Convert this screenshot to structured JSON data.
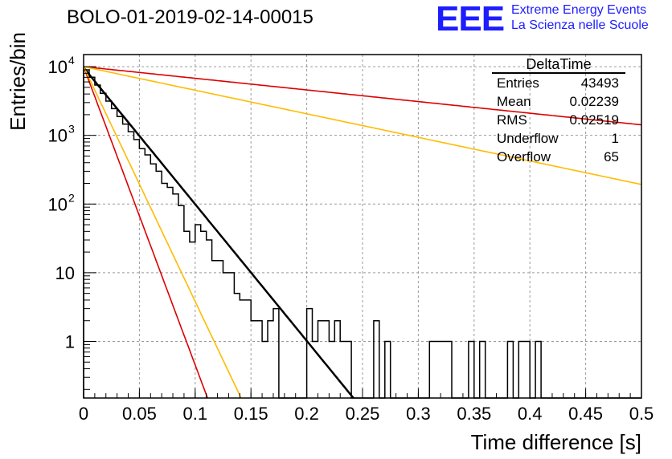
{
  "title": "BOLO-01-2019-02-14-00015",
  "logo": {
    "mark": "EEE",
    "line1": "Extreme Energy Events",
    "line2": "La Scienza nelle Scuole",
    "color": "#1d1dff"
  },
  "stats": {
    "name": "DeltaTime",
    "rows": [
      {
        "label": "Entries",
        "value": "43493"
      },
      {
        "label": "Mean",
        "value": "0.02239"
      },
      {
        "label": "RMS",
        "value": "0.02519"
      },
      {
        "label": "Underflow",
        "value": "1"
      },
      {
        "label": "Overflow",
        "value": "65"
      }
    ]
  },
  "chart_data": {
    "type": "histogram",
    "xlabel": "Time difference [s]",
    "ylabel": "Entries/bin",
    "xlim": [
      0,
      0.5
    ],
    "ylim": [
      0.15,
      15000
    ],
    "yscale": "log",
    "grid": true,
    "x_ticks": [
      {
        "v": 0,
        "label": "0"
      },
      {
        "v": 0.05,
        "label": "0.05"
      },
      {
        "v": 0.1,
        "label": "0.1"
      },
      {
        "v": 0.15,
        "label": "0.15"
      },
      {
        "v": 0.2,
        "label": "0.2"
      },
      {
        "v": 0.25,
        "label": "0.25"
      },
      {
        "v": 0.3,
        "label": "0.3"
      },
      {
        "v": 0.35,
        "label": "0.35"
      },
      {
        "v": 0.4,
        "label": "0.4"
      },
      {
        "v": 0.45,
        "label": "0.45"
      },
      {
        "v": 0.5,
        "label": "0.5"
      }
    ],
    "y_ticks": [
      {
        "v": 1,
        "label": "1"
      },
      {
        "v": 10,
        "label": "10"
      },
      {
        "v": 100,
        "label": "10",
        "exp": "2"
      },
      {
        "v": 1000,
        "label": "10",
        "exp": "3"
      },
      {
        "v": 10000,
        "label": "10",
        "exp": "4"
      }
    ],
    "histogram": {
      "bin_width": 0.005,
      "color": "#000000",
      "values": [
        9000,
        7000,
        5400,
        4100,
        3150,
        2450,
        1880,
        1460,
        1130,
        870,
        640,
        520,
        385,
        300,
        200,
        175,
        140,
        95,
        40,
        28,
        50,
        40,
        30,
        15,
        15,
        10,
        10,
        5,
        4,
        4,
        2,
        2,
        1,
        2,
        3,
        0,
        0,
        0,
        0,
        0,
        3,
        1,
        2,
        2,
        1,
        2,
        1,
        1,
        0,
        0,
        0,
        0,
        2,
        0,
        1,
        0,
        0,
        0,
        0,
        0,
        0,
        0,
        1,
        1,
        1,
        1,
        0,
        0,
        0,
        1,
        0,
        1,
        0,
        0,
        0,
        0,
        1,
        0,
        1,
        1,
        0,
        1,
        0,
        0,
        0,
        0,
        0,
        0,
        0,
        0,
        0,
        0,
        0,
        0,
        0,
        0,
        0,
        0,
        0,
        0
      ]
    },
    "fits": [
      {
        "color": "#000000",
        "amplitude": 9700,
        "slope": 45.8,
        "width": 2.5
      },
      {
        "color": "#dd0000",
        "amplitude": 10000,
        "slope": 100,
        "width": 1.6
      },
      {
        "color": "#ffbb00",
        "amplitude": 10000,
        "slope": 78.7,
        "width": 1.6
      },
      {
        "color": "#dd0000",
        "amplitude": 10000,
        "slope": 3.9,
        "width": 1.6
      },
      {
        "color": "#ffbb00",
        "amplitude": 10000,
        "slope": 7.9,
        "width": 1.6
      }
    ]
  }
}
